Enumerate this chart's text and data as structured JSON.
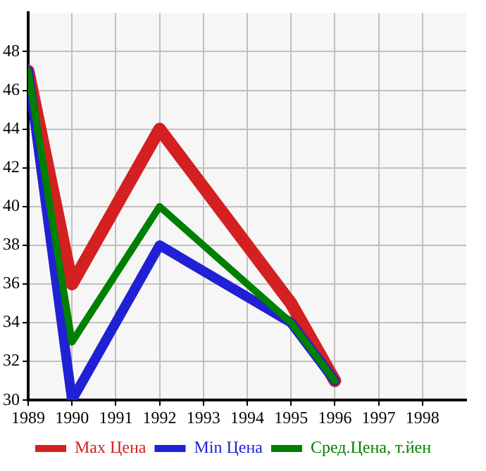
{
  "chart_data": {
    "type": "line",
    "x": [
      1989,
      1990,
      1992,
      1995,
      1996
    ],
    "xlim": [
      1989,
      1999
    ],
    "xticks": [
      1989,
      1990,
      1991,
      1992,
      1993,
      1994,
      1995,
      1996,
      1997,
      1998
    ],
    "ylim": [
      30,
      50
    ],
    "yticks": [
      30,
      32,
      34,
      36,
      38,
      40,
      42,
      44,
      46,
      48
    ],
    "grid": true,
    "legend": "bottom",
    "marker": "none",
    "line_style": "solid",
    "series": [
      {
        "name": "Max Цена",
        "color": "#d42020",
        "values": [
          47,
          36,
          44,
          35,
          31
        ]
      },
      {
        "name": "Min Цена",
        "color": "#2020d4",
        "values": [
          47,
          30,
          38,
          34,
          31
        ]
      },
      {
        "name": "Сред.Цена, т.йен",
        "color": "#008000",
        "values": [
          47,
          33,
          40,
          34,
          31
        ]
      }
    ]
  }
}
